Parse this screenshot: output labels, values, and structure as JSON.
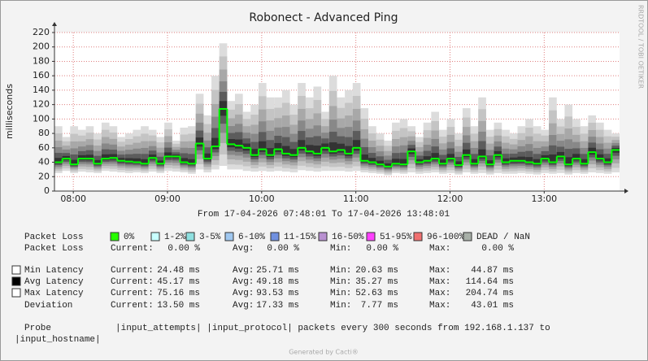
{
  "chart_data": {
    "type": "smoke",
    "title": "Robonect - Advanced Ping",
    "subtitle": "From 17-04-2026 07:48:01 To 17-04-2026 13:48:01",
    "y_label": "milliseconds",
    "side_text": "RRDTOOL / TOBI OETIKER",
    "xlim": [
      468,
      828
    ],
    "xticks": [
      {
        "value": 480,
        "label": "08:00"
      },
      {
        "value": 540,
        "label": "09:00"
      },
      {
        "value": 600,
        "label": "10:00"
      },
      {
        "value": 660,
        "label": "11:00"
      },
      {
        "value": 720,
        "label": "12:00"
      },
      {
        "value": 780,
        "label": "13:00"
      }
    ],
    "ylim": [
      0,
      220
    ],
    "yticks": [
      0,
      20,
      40,
      60,
      80,
      100,
      120,
      140,
      160,
      180,
      200,
      220
    ],
    "grid": true,
    "x": [
      468,
      473,
      478,
      483,
      488,
      493,
      498,
      503,
      508,
      513,
      518,
      523,
      528,
      533,
      538,
      543,
      548,
      553,
      558,
      563,
      568,
      573,
      578,
      583,
      588,
      593,
      598,
      603,
      608,
      613,
      618,
      623,
      628,
      633,
      638,
      643,
      648,
      653,
      658,
      663,
      668,
      673,
      678,
      683,
      688,
      693,
      698,
      703,
      708,
      713,
      718,
      723,
      728,
      733,
      738,
      743,
      748,
      753,
      758,
      763,
      768,
      773,
      778,
      783,
      788,
      793,
      798,
      803,
      808,
      813,
      818,
      823
    ],
    "series": [
      {
        "name": "Min Latency",
        "color": "#d8d8d8",
        "values": [
          25,
          28,
          25,
          27,
          26,
          25,
          28,
          27,
          26,
          25,
          26,
          25,
          27,
          25,
          28,
          27,
          26,
          24,
          30,
          26,
          30,
          35,
          30,
          30,
          28,
          27,
          28,
          27,
          28,
          27,
          26,
          29,
          28,
          27,
          28,
          28,
          28,
          27,
          28,
          26,
          25,
          24,
          22,
          25,
          24,
          26,
          24,
          25,
          26,
          24,
          25,
          23,
          26,
          24,
          25,
          23,
          25,
          24,
          24,
          25,
          24,
          23,
          25,
          24,
          25,
          23,
          25,
          24,
          26,
          25,
          24,
          26
        ]
      },
      {
        "name": "Avg Latency",
        "color": "#00ff00",
        "values": [
          40,
          45,
          37,
          45,
          45,
          38,
          45,
          46,
          42,
          41,
          40,
          38,
          46,
          38,
          48,
          48,
          40,
          38,
          66,
          45,
          62,
          114,
          65,
          63,
          60,
          50,
          58,
          50,
          58,
          52,
          50,
          60,
          55,
          52,
          60,
          55,
          57,
          52,
          60,
          42,
          40,
          37,
          34,
          38,
          37,
          55,
          40,
          42,
          45,
          38,
          45,
          36,
          50,
          38,
          48,
          37,
          50,
          40,
          42,
          42,
          40,
          38,
          45,
          40,
          48,
          37,
          45,
          38,
          54,
          45,
          40,
          57
        ]
      },
      {
        "name": "Max Latency",
        "color": "#d8d8d8",
        "values": [
          90,
          75,
          90,
          85,
          90,
          80,
          95,
          90,
          75,
          80,
          85,
          90,
          85,
          75,
          95,
          70,
          88,
          90,
          135,
          105,
          160,
          205,
          125,
          135,
          110,
          120,
          150,
          130,
          130,
          140,
          120,
          150,
          130,
          145,
          110,
          160,
          130,
          140,
          150,
          115,
          90,
          80,
          70,
          95,
          100,
          90,
          75,
          95,
          110,
          85,
          100,
          80,
          115,
          90,
          130,
          85,
          95,
          85,
          80,
          90,
          100,
          90,
          85,
          130,
          100,
          120,
          100,
          90,
          105,
          95,
          85,
          80
        ]
      }
    ]
  },
  "loss_legend": {
    "label": "Packet Loss",
    "items": [
      {
        "name": "0%",
        "color": "#26ff00"
      },
      {
        "name": "1-2%",
        "color": "#c8ffff"
      },
      {
        "name": "3-5%",
        "color": "#8fe0e0"
      },
      {
        "name": "6-10%",
        "color": "#a0c8f0"
      },
      {
        "name": "11-15%",
        "color": "#7090e0"
      },
      {
        "name": "16-50%",
        "color": "#b890d0"
      },
      {
        "name": "51-95%",
        "color": "#ff40ff"
      },
      {
        "name": "96-100%",
        "color": "#f07070"
      },
      {
        "name": "DEAD / NaN",
        "color": "#a8b0a8"
      }
    ]
  },
  "stats": {
    "rows": [
      {
        "label": "Packet Loss",
        "cells": [
          "Current:",
          "0.00 %",
          "Avg:",
          "0.00 %",
          "Min:",
          "0.00 %",
          "Max:",
          "0.00 %"
        ]
      },
      {
        "cells": [
          "Current:",
          "24.48 ms",
          "Avg:",
          "25.71 ms",
          "Min:",
          "20.63 ms",
          "Max:",
          "44.87 ms"
        ]
      },
      {
        "cells": [
          "Current:",
          "45.17 ms",
          "Avg:",
          "49.18 ms",
          "Min:",
          "35.27 ms",
          "Max:",
          "114.64 ms"
        ]
      },
      {
        "cells": [
          "Current:",
          "75.16 ms",
          "Avg:",
          "93.53 ms",
          "Min:",
          "52.63 ms",
          "Max:",
          "204.74 ms"
        ]
      },
      {
        "label": "Deviation",
        "cells": [
          "Current:",
          "13.50 ms",
          "Avg:",
          "17.33 ms",
          "Min:",
          "7.77 ms",
          "Max:",
          "43.01 ms"
        ]
      }
    ]
  },
  "probe": {
    "label": "Probe",
    "text": "|input_attempts| |input_protocol| packets every 300 seconds from 192.168.1.137 to",
    "text2": "|input_hostname|"
  },
  "footer": "Generated by Cacti®"
}
